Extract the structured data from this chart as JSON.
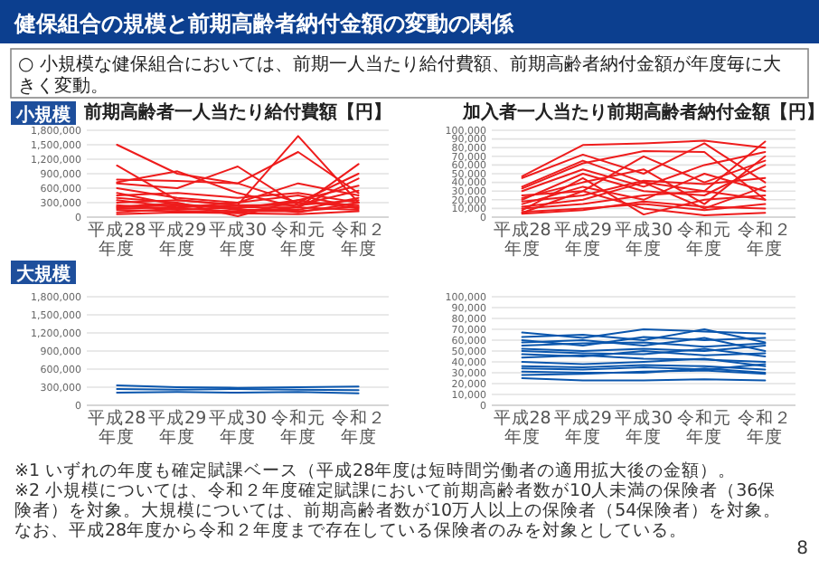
{
  "chart_data": [
    {
      "type": "line",
      "title": "前期高齢者一人当たり給付費額【円】",
      "annotations": [
        "健保組合の規模と前期高齢者納付金額の変動の関係",
        "○ 小規模な健保組合においては、前期一人当たり給付費額、前期高齢者納付金額が年度毎に大きく変動。",
        "小規模"
      ],
      "categories": [
        "平成28年度",
        "平成29年度",
        "平成30年度",
        "令和元年度",
        "令和２年度"
      ],
      "ylim": [
        0,
        1800000
      ],
      "yticks": [
        {
          "value": 0,
          "label": "0"
        },
        {
          "value": 300000,
          "label": "300,000"
        },
        {
          "value": 600000,
          "label": "600,000"
        },
        {
          "value": 900000,
          "label": "900,000"
        },
        {
          "value": 1200000,
          "label": "1,200,000"
        },
        {
          "value": 1500000,
          "label": "1,500,000"
        },
        {
          "value": 1800000,
          "label": "1,800,000"
        }
      ],
      "grid": "y",
      "series": [
        {
          "color": "#ee1c1c",
          "values": [
            1500000,
            900000,
            700000,
            1350000,
            500000
          ]
        },
        {
          "color": "#ee1c1c",
          "values": [
            1070000,
            350000,
            250000,
            1680000,
            300000
          ]
        },
        {
          "color": "#ee1c1c",
          "values": [
            720000,
            950000,
            500000,
            200000,
            1100000
          ]
        },
        {
          "color": "#ee1c1c",
          "values": [
            780000,
            750000,
            700000,
            300000,
            900000
          ]
        },
        {
          "color": "#ee1c1c",
          "values": [
            700000,
            600000,
            1050000,
            250000,
            550000
          ]
        },
        {
          "color": "#ee1c1c",
          "values": [
            600000,
            400000,
            300000,
            700000,
            450000
          ]
        },
        {
          "color": "#ee1c1c",
          "values": [
            500000,
            250000,
            200000,
            200000,
            800000
          ]
        },
        {
          "color": "#ee1c1c",
          "values": [
            450000,
            500000,
            400000,
            500000,
            300000
          ]
        },
        {
          "color": "#ee1c1c",
          "values": [
            400000,
            300000,
            20000,
            350000,
            650000
          ]
        },
        {
          "color": "#ee1c1c",
          "values": [
            350000,
            200000,
            300000,
            450000,
            200000
          ]
        },
        {
          "color": "#ee1c1c",
          "values": [
            300000,
            350000,
            250000,
            250000,
            350000
          ]
        },
        {
          "color": "#ee1c1c",
          "values": [
            250000,
            150000,
            200000,
            300000,
            250000
          ]
        },
        {
          "color": "#ee1c1c",
          "values": [
            220000,
            280000,
            150000,
            150000,
            400000
          ]
        },
        {
          "color": "#ee1c1c",
          "values": [
            200000,
            250000,
            180000,
            350000,
            180000
          ]
        },
        {
          "color": "#ee1c1c",
          "values": [
            180000,
            200000,
            250000,
            100000,
            300000
          ]
        },
        {
          "color": "#ee1c1c",
          "values": [
            150000,
            120000,
            100000,
            200000,
            150000
          ]
        },
        {
          "color": "#ee1c1c",
          "values": [
            100000,
            180000,
            120000,
            120000,
            220000
          ]
        },
        {
          "color": "#ee1c1c",
          "values": [
            60000,
            100000,
            80000,
            60000,
            120000
          ]
        }
      ]
    },
    {
      "type": "line",
      "title": "加入者一人当たり前期高齢者納付金額【円】",
      "categories": [
        "平成28年度",
        "平成29年度",
        "平成30年度",
        "令和元年度",
        "令和２年度"
      ],
      "ylim": [
        0,
        100000
      ],
      "yticks": [
        {
          "value": 0,
          "label": "0"
        },
        {
          "value": 10000,
          "label": "10,000"
        },
        {
          "value": 20000,
          "label": "20,000"
        },
        {
          "value": 30000,
          "label": "30,000"
        },
        {
          "value": 40000,
          "label": "40,000"
        },
        {
          "value": 50000,
          "label": "50,000"
        },
        {
          "value": 60000,
          "label": "60,000"
        },
        {
          "value": 70000,
          "label": "70,000"
        },
        {
          "value": 80000,
          "label": "80,000"
        },
        {
          "value": 90000,
          "label": "90,000"
        },
        {
          "value": 100000,
          "label": "100,000"
        }
      ],
      "grid": "y",
      "series": [
        {
          "color": "#ee1c1c",
          "values": [
            47000,
            83000,
            85000,
            88000,
            80000
          ]
        },
        {
          "color": "#ee1c1c",
          "values": [
            45000,
            72000,
            50000,
            85000,
            40000
          ]
        },
        {
          "color": "#ee1c1c",
          "values": [
            35000,
            65000,
            40000,
            30000,
            87000
          ]
        },
        {
          "color": "#ee1c1c",
          "values": [
            33000,
            62000,
            76000,
            75000,
            20000
          ]
        },
        {
          "color": "#ee1c1c",
          "values": [
            30000,
            55000,
            35000,
            60000,
            75000
          ]
        },
        {
          "color": "#ee1c1c",
          "values": [
            25000,
            30000,
            70000,
            40000,
            65000
          ]
        },
        {
          "color": "#ee1c1c",
          "values": [
            22000,
            40000,
            55000,
            15000,
            70000
          ]
        },
        {
          "color": "#ee1c1c",
          "values": [
            20000,
            50000,
            30000,
            25000,
            60000
          ]
        },
        {
          "color": "#ee1c1c",
          "values": [
            18000,
            25000,
            42000,
            38000,
            45000
          ]
        },
        {
          "color": "#ee1c1c",
          "values": [
            15000,
            35000,
            20000,
            50000,
            30000
          ]
        },
        {
          "color": "#ee1c1c",
          "values": [
            12000,
            20000,
            40000,
            10000,
            35000
          ]
        },
        {
          "color": "#ee1c1c",
          "values": [
            10000,
            15000,
            25000,
            30000,
            20000
          ]
        },
        {
          "color": "#ee1c1c",
          "values": [
            8000,
            45000,
            3000,
            20000,
            25000
          ]
        },
        {
          "color": "#ee1c1c",
          "values": [
            6000,
            10000,
            15000,
            8000,
            15000
          ]
        },
        {
          "color": "#ee1c1c",
          "values": [
            5000,
            30000,
            10000,
            2000,
            5000
          ]
        },
        {
          "color": "#ee1c1c",
          "values": [
            4000,
            8000,
            18000,
            12000,
            10000
          ]
        }
      ]
    },
    {
      "type": "line",
      "annotations": [
        "大規模",
        "※1 いずれの年度も確定賦課ベース（平成28年度は短時間労働者の適用拡大後の金額）。",
        "※2 小規模については、令和２年度確定賦課において前期高齢者数が10人未満の保険者（36保険者）を対象。大規模については、前期高齢者数が10万人以上の保険者（54保険者）を対象。なお、平成28年度から令和２年度まで存在している保険者のみを対象としている。",
        "8"
      ],
      "categories": [
        "平成28年度",
        "平成29年度",
        "平成30年度",
        "令和元年度",
        "令和２年度"
      ],
      "ylim": [
        0,
        1800000
      ],
      "yticks": [
        {
          "value": 0,
          "label": "0"
        },
        {
          "value": 300000,
          "label": "300,000"
        },
        {
          "value": 600000,
          "label": "600,000"
        },
        {
          "value": 900000,
          "label": "900,000"
        },
        {
          "value": 1200000,
          "label": "1,200,000"
        },
        {
          "value": 1500000,
          "label": "1,500,000"
        },
        {
          "value": 1800000,
          "label": "1,800,000"
        }
      ],
      "grid": "y",
      "series": [
        {
          "color": "#0a56ad",
          "values": [
            330000,
            300000,
            290000,
            300000,
            310000
          ]
        },
        {
          "color": "#0a56ad",
          "values": [
            270000,
            260000,
            270000,
            260000,
            250000
          ]
        },
        {
          "color": "#0a56ad",
          "values": [
            210000,
            220000,
            210000,
            220000,
            200000
          ]
        }
      ]
    },
    {
      "type": "line",
      "categories": [
        "平成28年度",
        "平成29年度",
        "平成30年度",
        "令和元年度",
        "令和２年度"
      ],
      "ylim": [
        0,
        100000
      ],
      "yticks": [
        {
          "value": 0,
          "label": "0"
        },
        {
          "value": 10000,
          "label": "10,000"
        },
        {
          "value": 20000,
          "label": "20,000"
        },
        {
          "value": 30000,
          "label": "30,000"
        },
        {
          "value": 40000,
          "label": "40,000"
        },
        {
          "value": 50000,
          "label": "50,000"
        },
        {
          "value": 60000,
          "label": "60,000"
        },
        {
          "value": 70000,
          "label": "70,000"
        },
        {
          "value": 80000,
          "label": "80,000"
        },
        {
          "value": 90000,
          "label": "90,000"
        },
        {
          "value": 100000,
          "label": "100,000"
        }
      ],
      "grid": "y",
      "series": [
        {
          "color": "#0a56ad",
          "values": [
            67000,
            62000,
            70000,
            68000,
            66000
          ]
        },
        {
          "color": "#0a56ad",
          "values": [
            63000,
            65000,
            60000,
            70000,
            58000
          ]
        },
        {
          "color": "#0a56ad",
          "values": [
            60000,
            55000,
            63000,
            60000,
            62000
          ]
        },
        {
          "color": "#0a56ad",
          "values": [
            58000,
            60000,
            55000,
            62000,
            50000
          ]
        },
        {
          "color": "#0a56ad",
          "values": [
            55000,
            57000,
            58000,
            54000,
            57000
          ]
        },
        {
          "color": "#0a56ad",
          "values": [
            52000,
            50000,
            52000,
            50000,
            55000
          ]
        },
        {
          "color": "#0a56ad",
          "values": [
            50000,
            48000,
            47000,
            52000,
            45000
          ]
        },
        {
          "color": "#0a56ad",
          "values": [
            47000,
            45000,
            50000,
            46000,
            48000
          ]
        },
        {
          "color": "#0a56ad",
          "values": [
            44000,
            46000,
            43000,
            42000,
            40000
          ]
        },
        {
          "color": "#0a56ad",
          "values": [
            40000,
            38000,
            40000,
            43000,
            36000
          ]
        },
        {
          "color": "#0a56ad",
          "values": [
            36000,
            35000,
            37000,
            36000,
            33000
          ]
        },
        {
          "color": "#0a56ad",
          "values": [
            34000,
            33000,
            35000,
            33000,
            38000
          ]
        },
        {
          "color": "#0a56ad",
          "values": [
            31000,
            30000,
            30000,
            34000,
            30000
          ]
        },
        {
          "color": "#0a56ad",
          "values": [
            28000,
            29000,
            31000,
            32000,
            29000
          ]
        },
        {
          "color": "#0a56ad",
          "values": [
            25000,
            23000,
            23000,
            24000,
            23000
          ]
        }
      ]
    }
  ]
}
